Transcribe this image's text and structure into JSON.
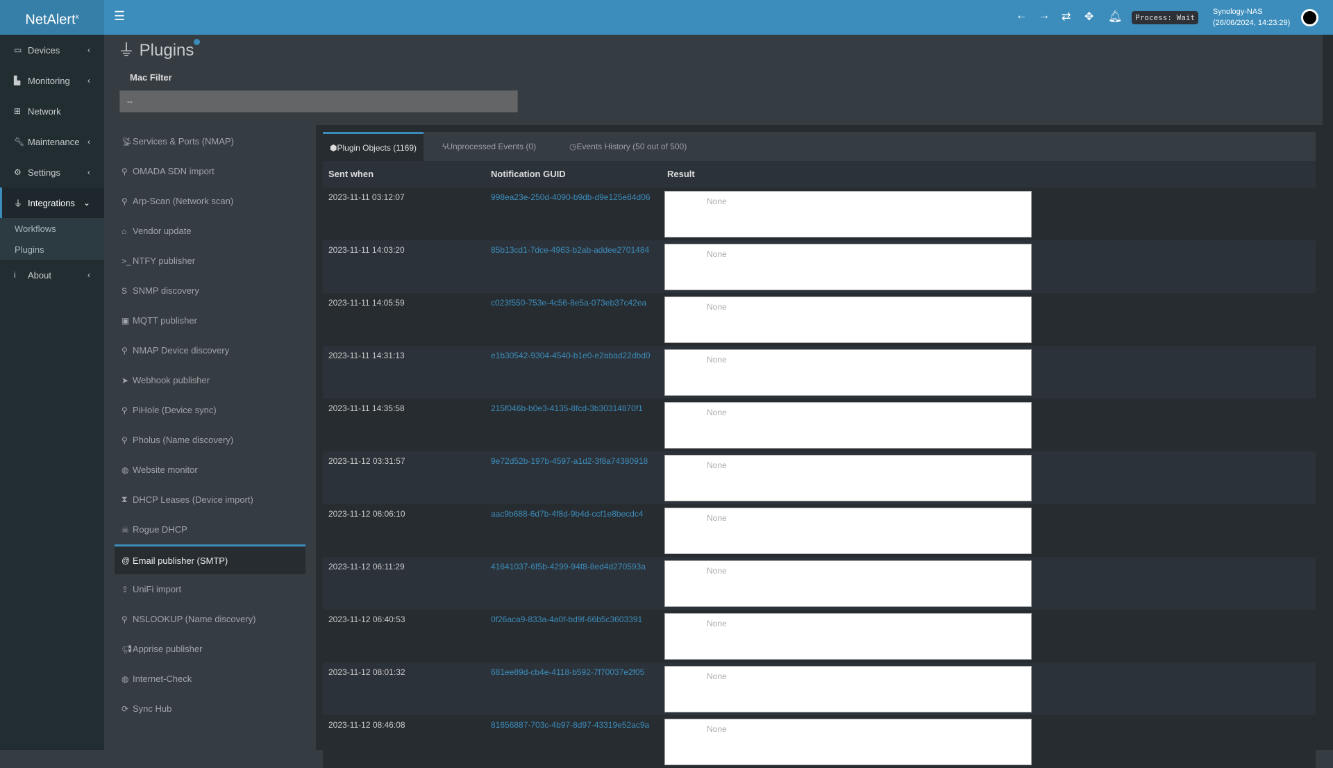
{
  "header": {
    "logo": "NetAlert",
    "logo_sup": "x",
    "process": "Process: Wait",
    "host": "Synology-NAS",
    "datetime": "(26/06/2024, 14:23:29)",
    "icons": [
      "arrow-left-icon",
      "arrow-right-icon",
      "refresh-icon",
      "move-icon",
      "bell-icon"
    ]
  },
  "sidebar": {
    "items": [
      {
        "label": "Devices",
        "icon": "laptop-icon"
      },
      {
        "label": "Monitoring",
        "icon": "chart-icon"
      },
      {
        "label": "Network",
        "icon": "network-icon"
      },
      {
        "label": "Maintenance",
        "icon": "wrench-icon"
      },
      {
        "label": "Settings",
        "icon": "gear-icon"
      },
      {
        "label": "Integrations",
        "icon": "plug-icon",
        "active": true
      },
      {
        "label": "About",
        "icon": "info-icon"
      }
    ],
    "submenu": [
      "Workflows",
      "Plugins"
    ]
  },
  "page": {
    "title": "Plugins",
    "mac_filter_label": "Mac Filter",
    "mac_filter_value": "--"
  },
  "plugins": [
    {
      "label": "Services & Ports (NMAP)",
      "icon": "satellite-icon"
    },
    {
      "label": "OMADA SDN import",
      "icon": "search-icon"
    },
    {
      "label": "Arp-Scan (Network scan)",
      "icon": "search-icon"
    },
    {
      "label": "Vendor update",
      "icon": "bank-icon"
    },
    {
      "label": "NTFY publisher",
      "icon": "terminal-icon"
    },
    {
      "label": "SNMP discovery",
      "icon": "s-icon"
    },
    {
      "label": "MQTT publisher",
      "icon": "rss-icon"
    },
    {
      "label": "NMAP Device discovery",
      "icon": "search-icon"
    },
    {
      "label": "Webhook publisher",
      "icon": "send-icon"
    },
    {
      "label": "PiHole (Device sync)",
      "icon": "search-icon"
    },
    {
      "label": "Pholus (Name discovery)",
      "icon": "search-icon"
    },
    {
      "label": "Website monitor",
      "icon": "globe-icon"
    },
    {
      "label": "DHCP Leases (Device import)",
      "icon": "hourglass-icon"
    },
    {
      "label": "Rogue DHCP",
      "icon": "skull-icon"
    },
    {
      "label": "Email publisher (SMTP)",
      "icon": "at-icon",
      "active": true
    },
    {
      "label": "UniFi import",
      "icon": "upload-icon"
    },
    {
      "label": "NSLOOKUP (Name discovery)",
      "icon": "search-icon"
    },
    {
      "label": "Apprise publisher",
      "icon": "bullhorn-icon"
    },
    {
      "label": "Internet-Check",
      "icon": "globe-icon"
    },
    {
      "label": "Sync Hub",
      "icon": "sync-icon"
    }
  ],
  "tabs": [
    {
      "label": "Plugin Objects (1169)",
      "icon": "cube-icon",
      "active": true
    },
    {
      "label": "Unprocessed Events (0)",
      "icon": "bolt-icon"
    },
    {
      "label": "Events History (50 out of 500)",
      "icon": "clock-icon"
    }
  ],
  "table": {
    "columns": [
      "Sent when",
      "Notification GUID",
      "Result"
    ],
    "rows": [
      {
        "sent": "2023-11-11 03:12:07",
        "guid": "998ea23e-250d-4090-b9db-d9e125e84d06",
        "result": "None"
      },
      {
        "sent": "2023-11-11 14:03:20",
        "guid": "85b13cd1-7dce-4963-b2ab-addee2701484",
        "result": "None"
      },
      {
        "sent": "2023-11-11 14:05:59",
        "guid": "c023f550-753e-4c56-8e5a-073eb37c42ea",
        "result": "None"
      },
      {
        "sent": "2023-11-11 14:31:13",
        "guid": "e1b30542-9304-4540-b1e0-e2abad22dbd0",
        "result": "None"
      },
      {
        "sent": "2023-11-11 14:35:58",
        "guid": "215f046b-b0e3-4135-8fcd-3b30314870f1",
        "result": "None"
      },
      {
        "sent": "2023-11-12 03:31:57",
        "guid": "9e72d52b-197b-4597-a1d2-3f8a74380918",
        "result": "None"
      },
      {
        "sent": "2023-11-12 06:06:10",
        "guid": "aac9b688-6d7b-4f8d-9b4d-ccf1e8becdc4",
        "result": "None"
      },
      {
        "sent": "2023-11-12 06:11:29",
        "guid": "41641037-6f5b-4299-94f8-8ed4d270593a",
        "result": "None"
      },
      {
        "sent": "2023-11-12 06:40:53",
        "guid": "0f26aca9-833a-4a0f-bd9f-66b5c3603391",
        "result": "None"
      },
      {
        "sent": "2023-11-12 08:01:32",
        "guid": "681ee89d-cb4e-4118-b592-7f70037e2f05",
        "result": "None"
      },
      {
        "sent": "2023-11-12 08:46:08",
        "guid": "81656887-703c-4b97-8d97-43319e52ac9a",
        "result": "None"
      }
    ]
  },
  "colors": {
    "accent": "#3c8dbc",
    "sidebar": "#222d32",
    "link": "#3c8dbc"
  }
}
